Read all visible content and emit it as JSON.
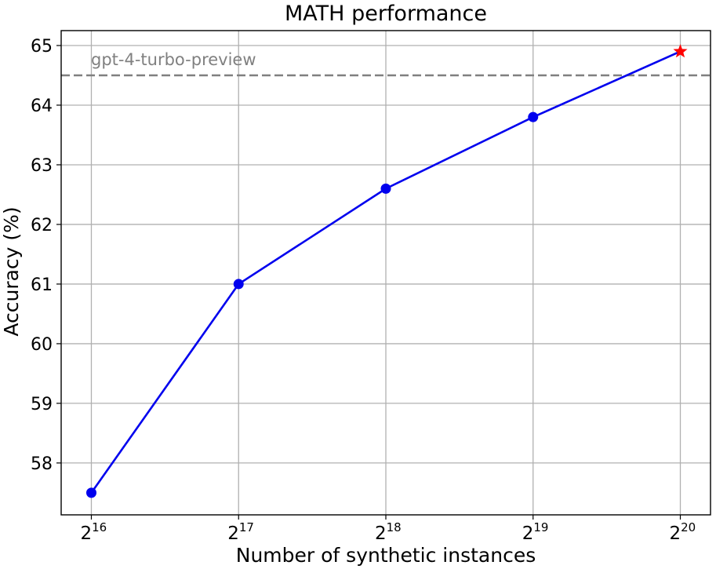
{
  "chart_data": {
    "type": "line",
    "title": "MATH performance",
    "xlabel": "Number of synthetic instances",
    "ylabel": "Accuracy (%)",
    "x_scale": "log2",
    "x_ticks": [
      {
        "base": "2",
        "exp": "16",
        "value": 65536
      },
      {
        "base": "2",
        "exp": "17",
        "value": 131072
      },
      {
        "base": "2",
        "exp": "18",
        "value": 262144
      },
      {
        "base": "2",
        "exp": "19",
        "value": 524288
      },
      {
        "base": "2",
        "exp": "20",
        "value": 1048576
      }
    ],
    "y_ticks": [
      58,
      59,
      60,
      61,
      62,
      63,
      64,
      65
    ],
    "ylim": [
      57.13,
      65.25
    ],
    "grid": true,
    "series": [
      {
        "color": "#0000ee",
        "marker": "circle",
        "x": [
          65536,
          131072,
          262144,
          524288
        ],
        "y": [
          57.5,
          61.0,
          62.6,
          63.8
        ]
      },
      {
        "color": "#0000ee",
        "marker": "none",
        "x": [
          524288,
          1048576
        ],
        "y": [
          63.8,
          64.9
        ]
      }
    ],
    "highlight_point": {
      "x": 1048576,
      "y": 64.9,
      "marker": "star",
      "color": "#ff0000"
    },
    "reference_line": {
      "y": 64.5,
      "label": "gpt-4-turbo-preview",
      "style": "dashed",
      "color": "#808080"
    }
  }
}
